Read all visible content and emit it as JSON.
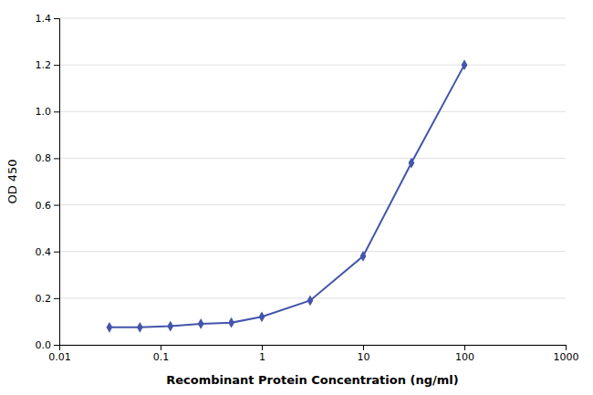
{
  "chart_data": {
    "type": "line",
    "x": [
      0.03125,
      0.0625,
      0.125,
      0.25,
      0.5,
      1.0,
      3.0,
      10.0,
      30.0,
      100.0
    ],
    "values": [
      0.075,
      0.075,
      0.08,
      0.09,
      0.095,
      0.12,
      0.19,
      0.38,
      0.78,
      1.2
    ],
    "color": "#4455aa",
    "marker": "diamond",
    "xlabel": "Recombinant Protein Concentration (ng/ml)",
    "ylabel": "OD 450",
    "log": "x",
    "xlim": [
      0.01,
      1000
    ],
    "ylim": [
      0,
      1.4
    ],
    "xticks": [
      0.01,
      0.1,
      1,
      10,
      100,
      1000
    ],
    "yticks": [
      {
        "value": 0,
        "label": "0.0"
      },
      0.2,
      0.4,
      0.6,
      0.8,
      {
        "value": 1,
        "label": "1.0"
      },
      1.2,
      1.4
    ],
    "grid": "y"
  }
}
